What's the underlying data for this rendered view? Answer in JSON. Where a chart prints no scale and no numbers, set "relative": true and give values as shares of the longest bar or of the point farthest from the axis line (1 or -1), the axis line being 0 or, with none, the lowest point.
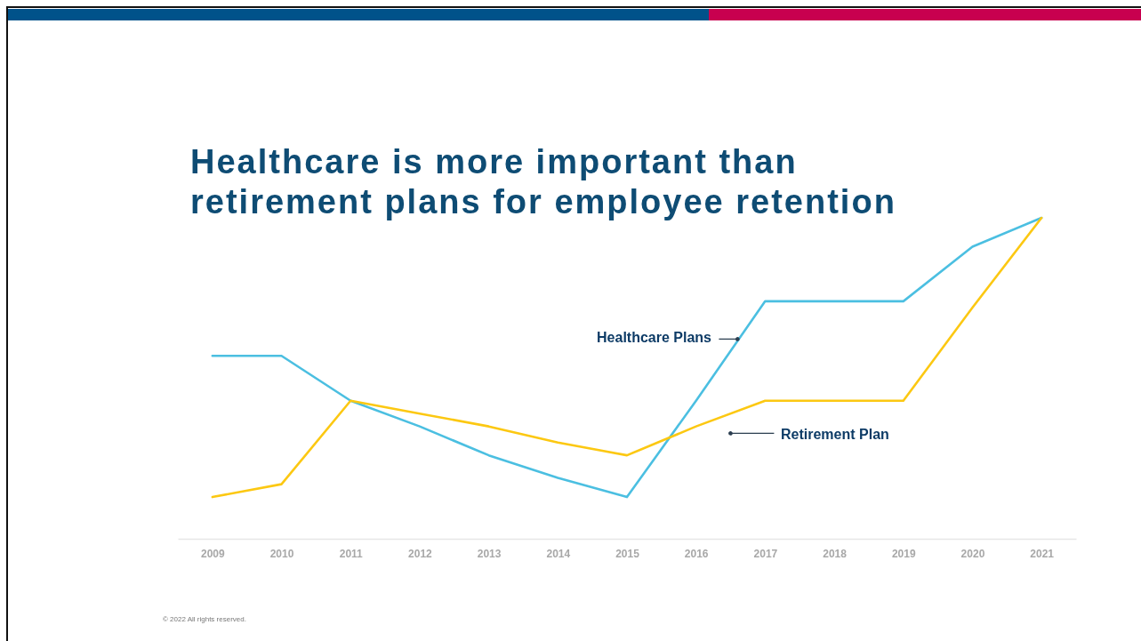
{
  "chart_data": {
    "type": "line",
    "title": "Healthcare is more important than retirement plans for employee retention",
    "categories": [
      "2009",
      "2010",
      "2011",
      "2012",
      "2013",
      "2014",
      "2015",
      "2016",
      "2017",
      "2018",
      "2019",
      "2020",
      "2021"
    ],
    "relative": true,
    "series": [
      {
        "name": "Healthcare Plans",
        "color": "#4bbfe1",
        "values": [
          0.57,
          0.57,
          0.43,
          0.35,
          0.26,
          0.19,
          0.13,
          0.43,
          0.74,
          0.74,
          0.74,
          0.91,
          1
        ]
      },
      {
        "name": "Retirement Plan",
        "color": "#fcc812",
        "values": [
          0.13,
          0.17,
          0.43,
          0.39,
          0.35,
          0.3,
          0.26,
          0.35,
          0.43,
          0.43,
          0.43,
          0.72,
          1
        ]
      }
    ],
    "annotations": [
      "© 2022 All rights reserved."
    ]
  }
}
